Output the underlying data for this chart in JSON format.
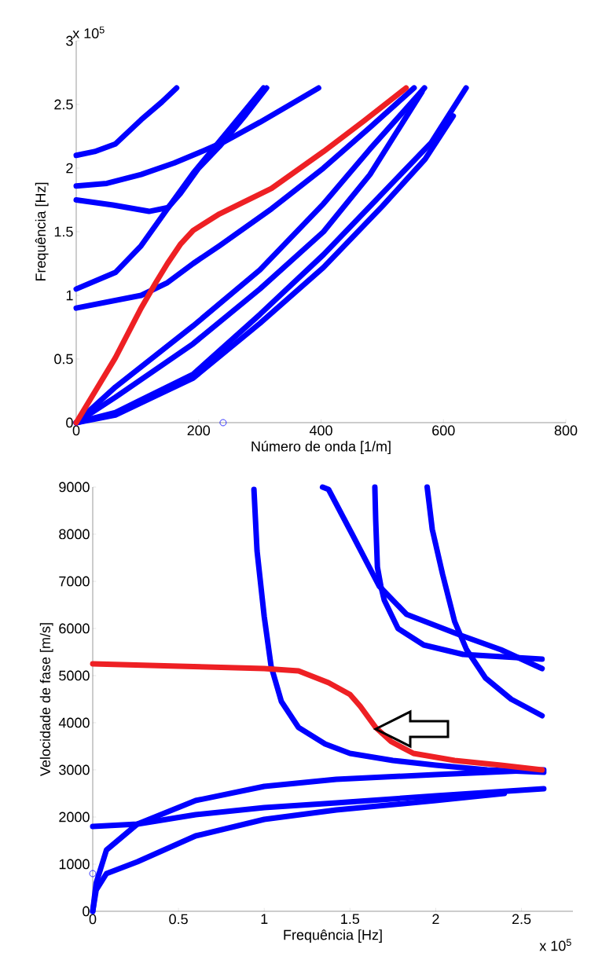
{
  "chart_data": [
    {
      "type": "line",
      "xlabel": "Número de onda [1/m]",
      "ylabel": "Frequência [Hz]",
      "xlim": [
        0,
        800
      ],
      "ylim": [
        0,
        3
      ],
      "xticks": [
        0,
        200,
        400,
        600,
        800
      ],
      "yticks": [
        0,
        0.5,
        1,
        1.5,
        2,
        2.5,
        3
      ],
      "annotations": [
        "x 10$^{5}$"
      ],
      "series": [
        {
          "color": "#0000ff",
          "x": [
            0,
            30,
            64,
            106,
            140,
            164
          ],
          "values": [
            2.1,
            2.13,
            2.19,
            2.38,
            2.52,
            2.63
          ]
        },
        {
          "color": "#0000ff",
          "x": [
            0,
            50,
            106,
            160,
            200,
            243,
            300,
            350,
            396
          ],
          "values": [
            1.86,
            1.88,
            1.95,
            2.04,
            2.12,
            2.21,
            2.36,
            2.5,
            2.63
          ]
        },
        {
          "color": "#0000ff",
          "x": [
            0,
            60,
            119,
            150,
            170,
            200,
            234,
            277,
            311
          ],
          "values": [
            1.75,
            1.71,
            1.66,
            1.69,
            1.8,
            2.0,
            2.17,
            2.42,
            2.63
          ]
        },
        {
          "color": "#0000ff",
          "x": [
            0,
            64,
            106,
            149,
            191,
            234,
            277,
            306
          ],
          "values": [
            1.05,
            1.18,
            1.39,
            1.68,
            1.96,
            2.21,
            2.46,
            2.63
          ]
        },
        {
          "color": "#0000ff",
          "x": [
            0,
            106,
            149,
            191,
            234,
            319,
            404,
            480,
            552
          ],
          "values": [
            0.9,
            1.0,
            1.1,
            1.25,
            1.39,
            1.68,
            2.0,
            2.32,
            2.63
          ]
        },
        {
          "color": "#0000ff",
          "x": [
            0,
            64,
            191,
            300,
            404,
            480,
            569
          ],
          "values": [
            0,
            0.28,
            0.76,
            1.2,
            1.72,
            2.15,
            2.63
          ]
        },
        {
          "color": "#0000ff",
          "x": [
            0,
            64,
            191,
            300,
            404,
            480,
            565
          ],
          "values": [
            0,
            0.2,
            0.62,
            1.05,
            1.5,
            1.95,
            2.6
          ]
        },
        {
          "color": "#0000ff",
          "x": [
            0,
            64,
            191,
            300,
            404,
            500,
            580,
            637
          ],
          "values": [
            0,
            0.08,
            0.38,
            0.85,
            1.32,
            1.8,
            2.2,
            2.63
          ]
        },
        {
          "color": "#0000ff",
          "x": [
            0,
            64,
            191,
            300,
            404,
            500,
            570,
            616
          ],
          "values": [
            0,
            0.06,
            0.35,
            0.78,
            1.22,
            1.7,
            2.07,
            2.41
          ]
        },
        {
          "type": "scatter",
          "color": "#0000ff",
          "marker": "circle",
          "x": [
            240
          ],
          "values": [
            0
          ]
        },
        {
          "color": "#ee2024",
          "x": [
            0,
            64,
            106,
            130,
            149,
            170,
            191,
            234,
            319,
            404,
            470,
            539
          ],
          "values": [
            0,
            0.51,
            0.9,
            1.1,
            1.25,
            1.4,
            1.51,
            1.64,
            1.84,
            2.13,
            2.37,
            2.63
          ]
        }
      ]
    },
    {
      "type": "line",
      "xlabel": "Frequência [Hz]",
      "ylabel": "Velocidade de fase [m/s]",
      "xlim": [
        0,
        2.8
      ],
      "ylim": [
        0,
        9000
      ],
      "xticks": [
        0,
        0.5,
        1,
        1.5,
        2,
        2.5
      ],
      "yticks": [
        0,
        1000,
        2000,
        3000,
        4000,
        5000,
        6000,
        7000,
        8000,
        9000
      ],
      "annotations": [
        "x 10$^{5}$"
      ],
      "series": [
        {
          "color": "#0000ff",
          "x": [
            0.94,
            0.958,
            1.0,
            1.04,
            1.1,
            1.2,
            1.355,
            1.5,
            1.75,
            2.0,
            2.3,
            2.63
          ],
          "values": [
            8950,
            7650,
            6250,
            5200,
            4450,
            3900,
            3550,
            3350,
            3200,
            3100,
            3000,
            2950
          ]
        },
        {
          "color": "#0000ff",
          "x": [
            0,
            0.02,
            0.08,
            0.26,
            0.6,
            1.0,
            1.42,
            2.0,
            2.63
          ],
          "values": [
            0,
            600,
            1300,
            1850,
            2350,
            2650,
            2800,
            2900,
            3000
          ]
        },
        {
          "color": "#0000ff",
          "x": [
            0,
            0.26,
            0.6,
            1.0,
            1.42,
            2.0,
            2.63
          ],
          "values": [
            1800,
            1850,
            2050,
            2200,
            2300,
            2450,
            2600
          ]
        },
        {
          "color": "#0000ff",
          "x": [
            0,
            0.02,
            0.08,
            0.26,
            0.6,
            1.0,
            1.42,
            2.0,
            2.4
          ],
          "values": [
            0,
            450,
            800,
            1050,
            1600,
            1950,
            2150,
            2350,
            2500
          ]
        },
        {
          "color": "#0000ff",
          "x": [
            1.34,
            1.375,
            1.52,
            1.67,
            1.83,
            2.15,
            2.38,
            2.62
          ],
          "values": [
            9000,
            8950,
            7950,
            6900,
            6300,
            5850,
            5550,
            5150
          ]
        },
        {
          "color": "#0000ff",
          "x": [
            1.645,
            1.65,
            1.66,
            1.68,
            1.7,
            1.78,
            1.93,
            2.16,
            2.62
          ],
          "values": [
            9000,
            8300,
            7300,
            6900,
            6600,
            6000,
            5650,
            5450,
            5350
          ]
        },
        {
          "color": "#0000ff",
          "x": [
            1.95,
            1.98,
            2.04,
            2.11,
            2.18,
            2.29,
            2.44,
            2.62
          ],
          "values": [
            9000,
            8100,
            7150,
            6150,
            5550,
            4950,
            4500,
            4150
          ]
        },
        {
          "type": "scatter",
          "color": "#0000ff",
          "marker": "circle",
          "x": [
            0
          ],
          "values": [
            800
          ]
        },
        {
          "color": "#ee2024",
          "x": [
            0,
            0.5,
            1.0,
            1.2,
            1.375,
            1.5,
            1.56,
            1.65,
            1.74,
            1.87,
            2.11,
            2.38,
            2.62
          ],
          "values": [
            5250,
            5200,
            5150,
            5100,
            4850,
            4600,
            4350,
            3900,
            3600,
            3350,
            3200,
            3100,
            3000
          ]
        }
      ]
    }
  ]
}
